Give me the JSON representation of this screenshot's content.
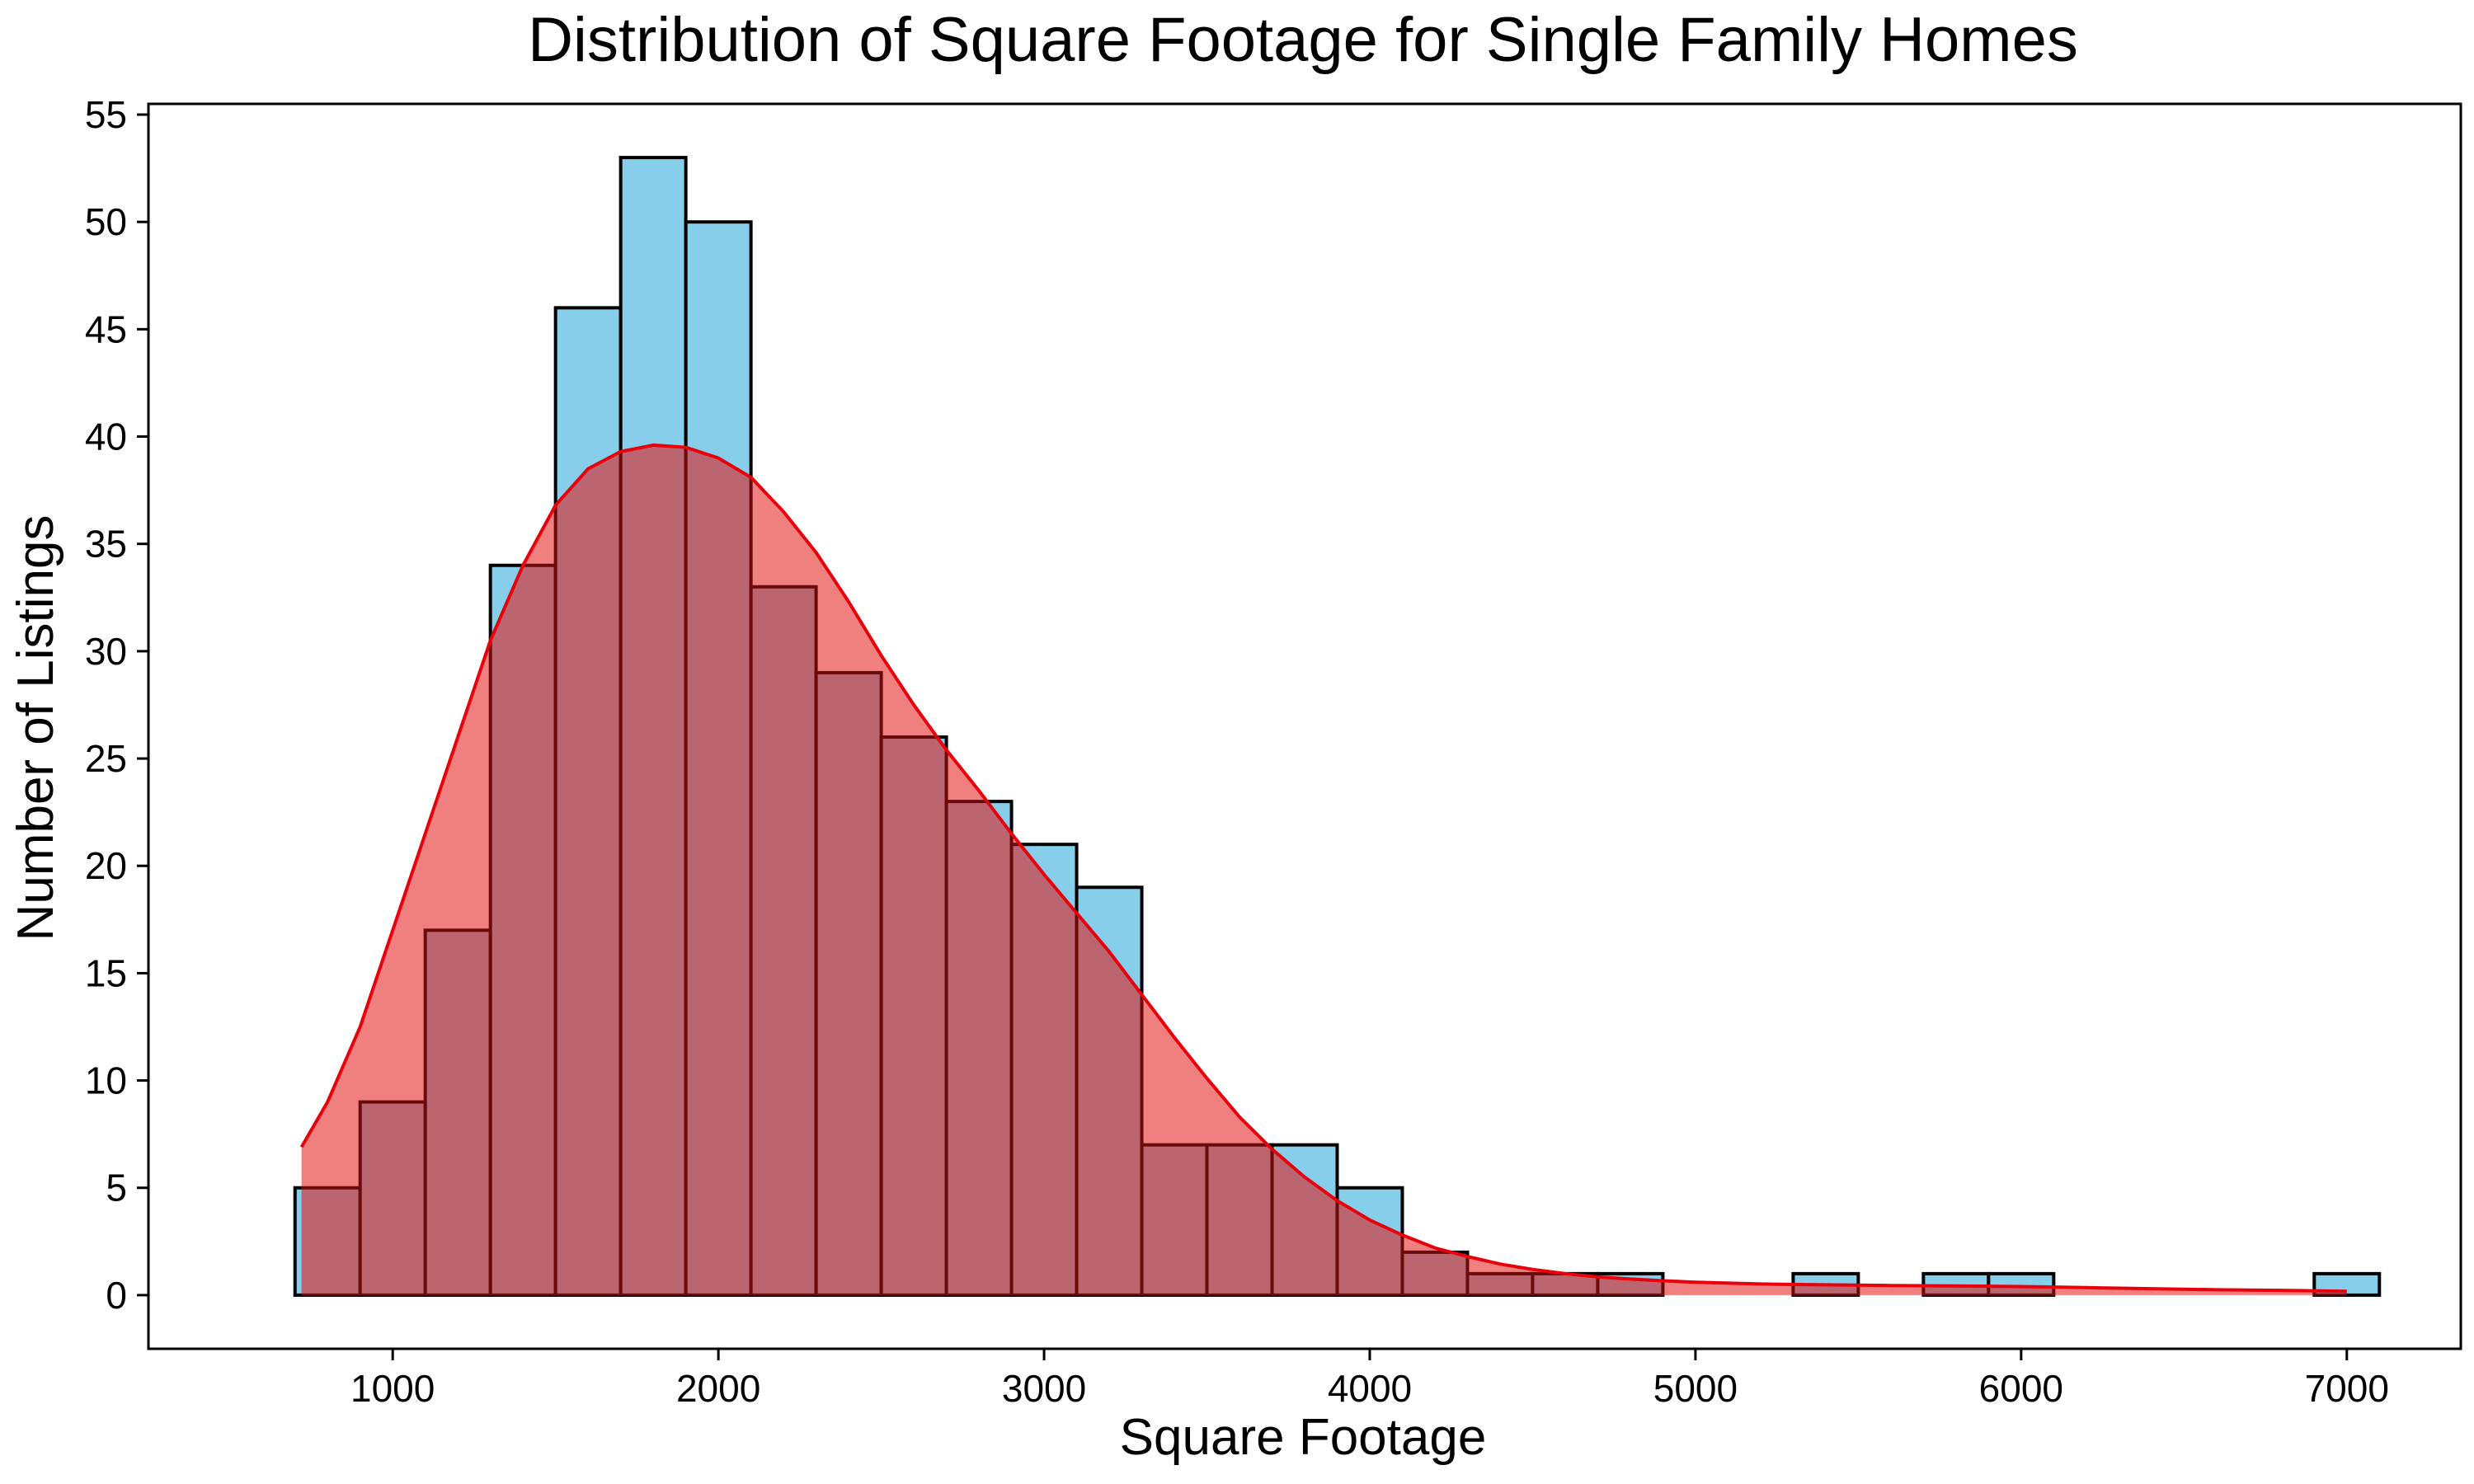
{
  "chart_data": {
    "type": "bar",
    "title": "Distribution of Square Footage for Single Family Homes",
    "xlabel": "Square Footage",
    "ylabel": "Number of Listings",
    "xlim": [
      250,
      7350
    ],
    "ylim": [
      -2.5,
      55.5
    ],
    "xticks": [
      1000,
      2000,
      3000,
      4000,
      5000,
      6000,
      7000
    ],
    "yticks": [
      0,
      5,
      10,
      15,
      20,
      25,
      30,
      35,
      40,
      45,
      50,
      55
    ],
    "grid": false,
    "bins": {
      "edges": [
        700,
        900,
        1100,
        1300,
        1500,
        1700,
        1900,
        2100,
        2300,
        2500,
        2700,
        2900,
        3100,
        3300,
        3500,
        3700,
        3900,
        4100,
        4300,
        4500,
        4700,
        4900,
        5100,
        5300,
        5500,
        5700,
        5900,
        6100,
        6300,
        6500,
        6700,
        6900,
        7100
      ],
      "counts": [
        5,
        9,
        17,
        34,
        46,
        53,
        50,
        33,
        29,
        26,
        23,
        21,
        19,
        7,
        7,
        7,
        5,
        2,
        1,
        1,
        1,
        0,
        0,
        1,
        0,
        1,
        1,
        0,
        0,
        0,
        0,
        1
      ]
    },
    "series": [
      {
        "type": "area",
        "x": [
          720,
          800,
          900,
          1000,
          1100,
          1200,
          1300,
          1400,
          1500,
          1600,
          1700,
          1800,
          1900,
          2000,
          2100,
          2200,
          2300,
          2400,
          2500,
          2600,
          2700,
          2800,
          2900,
          3000,
          3100,
          3200,
          3300,
          3400,
          3500,
          3600,
          3700,
          3800,
          3900,
          4000,
          4100,
          4200,
          4300,
          4400,
          4500,
          4600,
          4700,
          4800,
          4900,
          5000,
          5200,
          5400,
          5600,
          5800,
          6000,
          6200,
          6400,
          6600,
          6800,
          7000
        ],
        "y": [
          6.9,
          9.0,
          12.5,
          17.0,
          21.5,
          26.0,
          30.5,
          34.0,
          36.8,
          38.5,
          39.3,
          39.6,
          39.5,
          39.0,
          38.1,
          36.5,
          34.6,
          32.3,
          29.8,
          27.5,
          25.4,
          23.5,
          21.5,
          19.6,
          17.8,
          16.0,
          14.0,
          12.0,
          10.1,
          8.3,
          6.8,
          5.5,
          4.4,
          3.5,
          2.8,
          2.2,
          1.8,
          1.45,
          1.2,
          1.0,
          0.85,
          0.75,
          0.67,
          0.6,
          0.52,
          0.48,
          0.45,
          0.43,
          0.4,
          0.35,
          0.3,
          0.25,
          0.22,
          0.18
        ]
      }
    ],
    "colors": {
      "bar_fill": "#87CEEB",
      "overlap_fill": "#BB6570",
      "kde_fill": "#F08080",
      "kde_line": "#E8000B"
    }
  }
}
